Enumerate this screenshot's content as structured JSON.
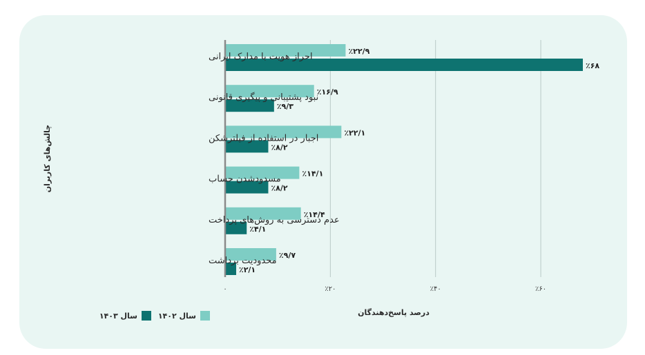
{
  "chart_data": {
    "type": "bar",
    "orientation": "horizontal",
    "ylabel": "چالش‌های کاربران",
    "xlabel": "درصد پاسخ‌دهندگان",
    "xlim": [
      0,
      68
    ],
    "xticks": [
      0,
      20,
      40,
      60
    ],
    "xtick_labels": [
      "۰",
      "٪۲۰",
      "٪۴۰",
      "٪۶۰"
    ],
    "grid": true,
    "legend_position": "bottom-left",
    "categories": [
      "احراز هویت با مدارک ایرانی",
      "نبود پشتیبانی و پیگیری قانونی",
      "اجبار در استفاده از فیلترشکن",
      "مسدودشدن حساب",
      "عدم دسترسی به روش‌های پرداخت",
      "محدودیت برداشت"
    ],
    "series": [
      {
        "name": "سال ۱۴۰۲",
        "color": "#7ecdc4",
        "values": [
          22.9,
          16.9,
          22.1,
          14.1,
          14.4,
          9.7
        ],
        "labels": [
          "٪۲۲/۹",
          "٪۱۶/۹",
          "٪۲۲/۱",
          "٪۱۴/۱",
          "٪۱۴/۴",
          "٪۹/۷"
        ]
      },
      {
        "name": "سال ۱۴۰۳",
        "color": "#0e7370",
        "values": [
          68,
          9.3,
          8.2,
          8.2,
          4.1,
          2.1
        ],
        "labels": [
          "٪۶۸",
          "٪۹/۳",
          "٪۸/۲",
          "٪۸/۲",
          "٪۴/۱",
          "٪۲/۱"
        ]
      }
    ]
  },
  "colors": {
    "background": "#e9f6f3",
    "grid": "#b9c9c6",
    "axis": "#8a8a8a"
  }
}
